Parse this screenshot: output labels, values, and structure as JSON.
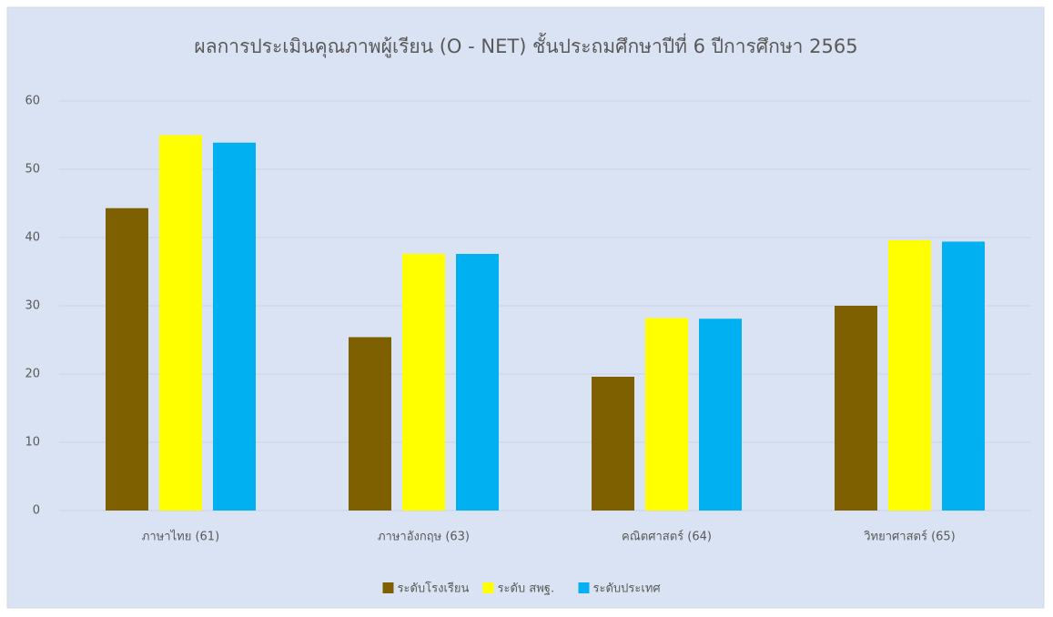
{
  "chart_data": {
    "type": "bar",
    "title": "ผลการประเมินคุณภาพผู้เรียน (O - NET) ชั้นประถมศึกษาปีที่ 6 ปีการศึกษา 2565",
    "categories": [
      "ภาษาไทย (61)",
      "ภาษาอังกฤษ (63)",
      "คณิตศาสตร์ (64)",
      "วิทยาศาสตร์ (65)"
    ],
    "series": [
      {
        "name": "ระดับโรงเรียน",
        "color": "#7f6000",
        "values": [
          44.3,
          25.4,
          19.6,
          30.0
        ]
      },
      {
        "name": "ระดับ สพฐ.",
        "color": "#ffff00",
        "values": [
          55.0,
          37.6,
          28.2,
          39.6
        ]
      },
      {
        "name": "ระดับประเทศ",
        "color": "#00b0f0",
        "values": [
          53.9,
          37.6,
          28.1,
          39.4
        ]
      }
    ],
    "ylim": [
      0,
      60
    ],
    "yticks": [
      0,
      10,
      20,
      30,
      40,
      50,
      60
    ],
    "grid": true,
    "legend": "bottom"
  }
}
